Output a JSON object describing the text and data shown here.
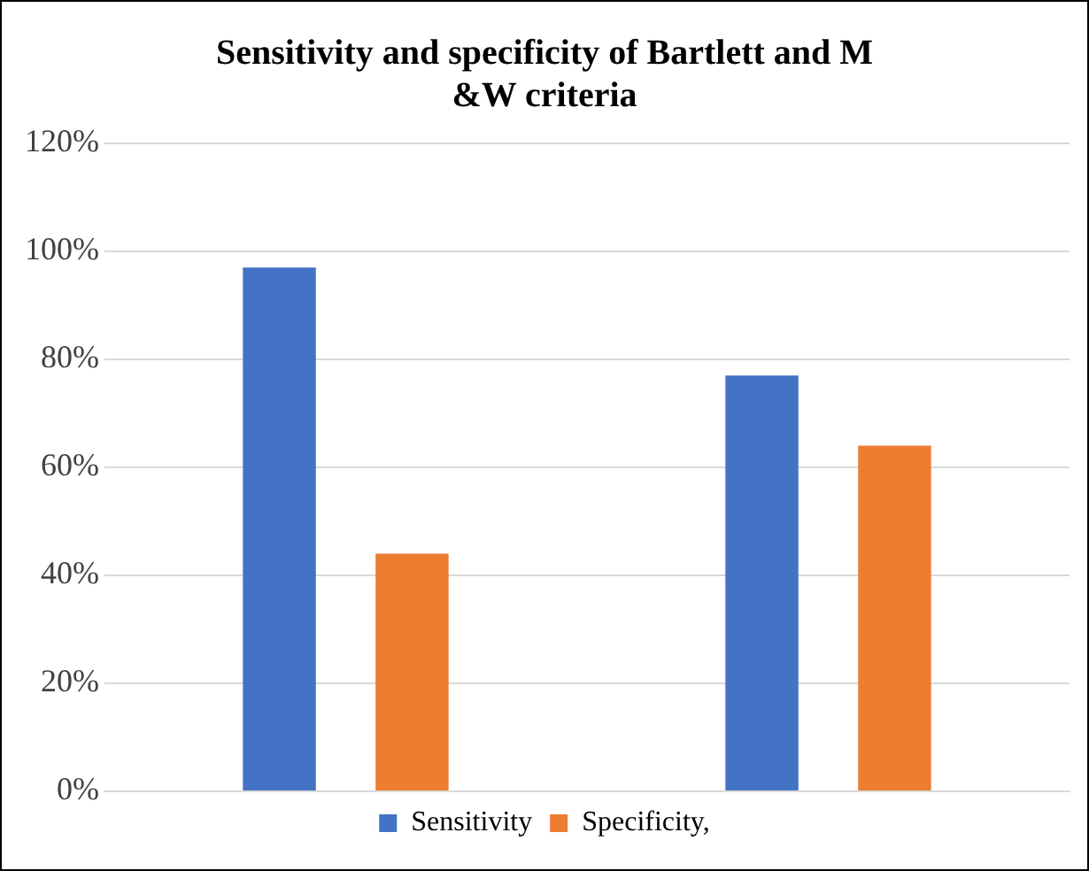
{
  "chart_data": {
    "type": "bar",
    "title": "Sensitivity and specificity of Bartlett and M &W criteria",
    "categories": [
      null,
      null
    ],
    "series": [
      {
        "name": "Sensitivity",
        "color": "#4472c4",
        "values": [
          97,
          77
        ]
      },
      {
        "name": "Specificity,",
        "color": "#ed7d31",
        "values": [
          44,
          64
        ]
      }
    ],
    "ylim": [
      0,
      120
    ],
    "yticks": [
      {
        "value": 0,
        "label": "0%"
      },
      {
        "value": 20,
        "label": "20%"
      },
      {
        "value": 40,
        "label": "40%"
      },
      {
        "value": 60,
        "label": "60%"
      },
      {
        "value": 80,
        "label": "80%"
      },
      {
        "value": 100,
        "label": "100%"
      },
      {
        "value": 120,
        "label": "120%"
      }
    ],
    "grid": "y",
    "legend": "bottom"
  }
}
